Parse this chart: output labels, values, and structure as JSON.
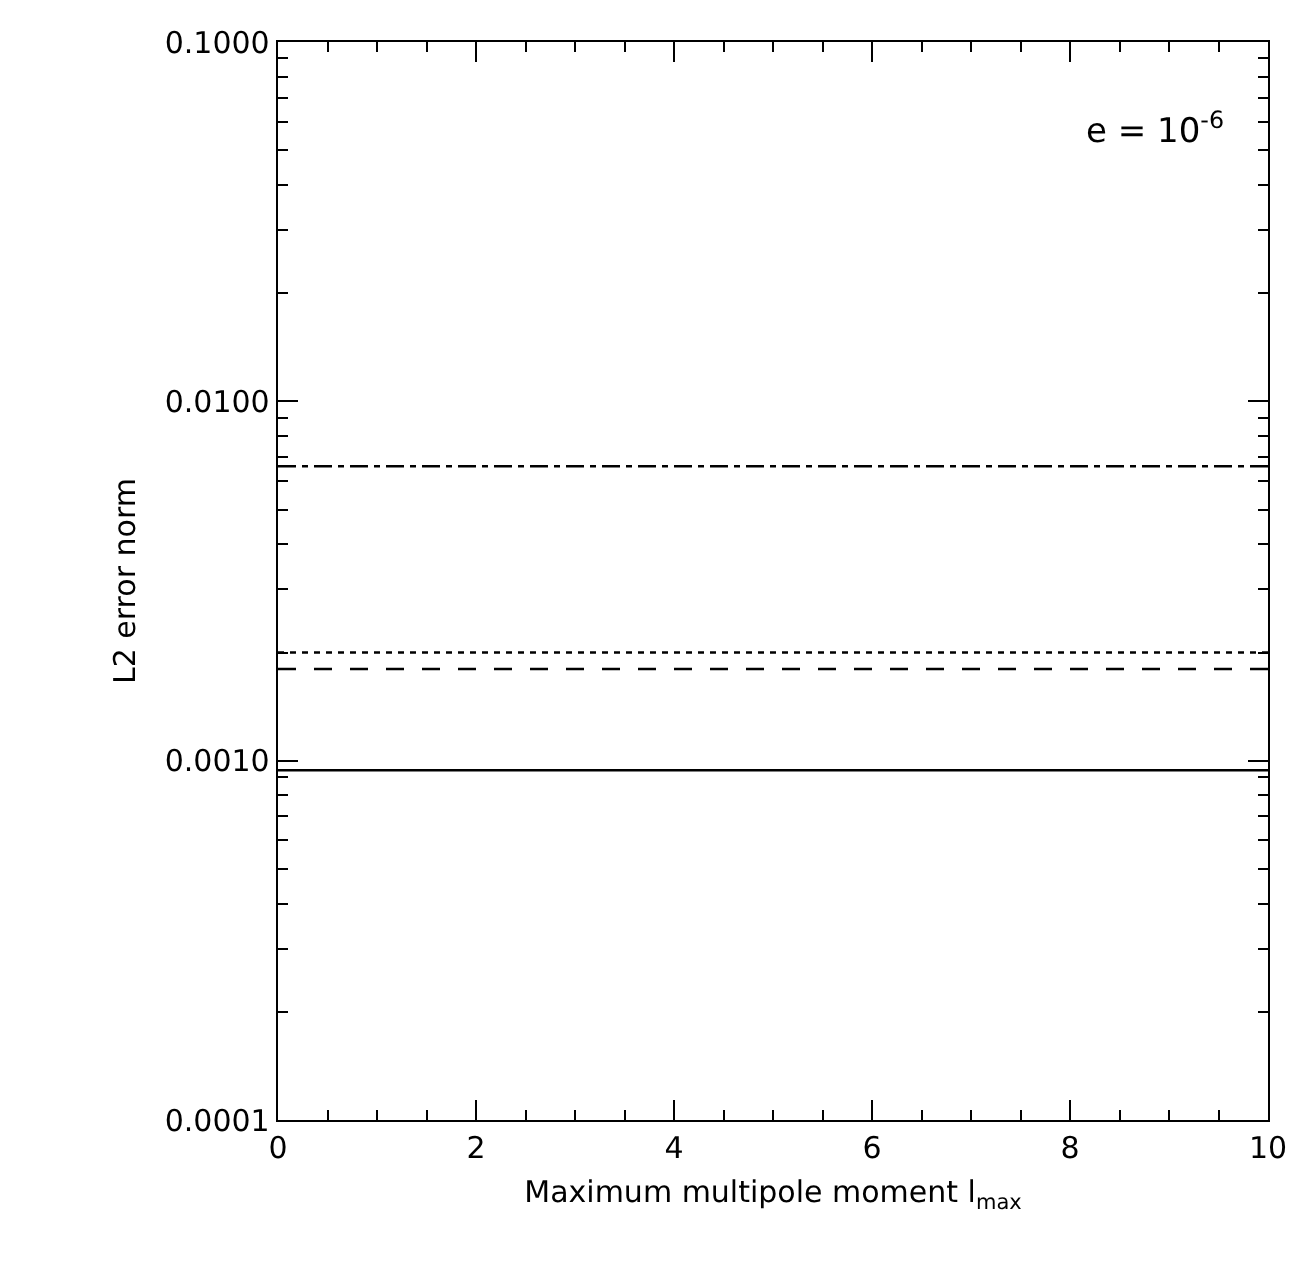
{
  "chart_data": {
    "type": "line",
    "xlabel": "Maximum multipole moment l$_{max}$",
    "ylabel": "L2 error norm",
    "annotations": [
      "e = 10$^{-6}$"
    ],
    "x": [
      0,
      10
    ],
    "xlim": [
      0,
      10
    ],
    "xticks": [
      0,
      2,
      4,
      6,
      8,
      10
    ],
    "log": "y",
    "ylim": [
      0.0001,
      0.1
    ],
    "yticks": [
      {
        "value": 0.0001,
        "label": "0.0001"
      },
      {
        "value": 0.001,
        "label": "0.0010"
      },
      {
        "value": 0.01,
        "label": "0.0100"
      },
      {
        "value": 0.1,
        "label": "0.1000"
      }
    ],
    "grid": false,
    "marker": "none",
    "series": [
      {
        "color": "#000000",
        "line_style": "dashdot",
        "values": [
          0.0066,
          0.0066
        ]
      },
      {
        "color": "#000000",
        "line_style": "dotted",
        "values": [
          0.002,
          0.002
        ]
      },
      {
        "color": "#000000",
        "line_style": "dashed",
        "values": [
          0.0018,
          0.0018
        ]
      },
      {
        "color": "#000000",
        "line_style": "solid",
        "values": [
          0.00094,
          0.00094
        ]
      }
    ]
  }
}
